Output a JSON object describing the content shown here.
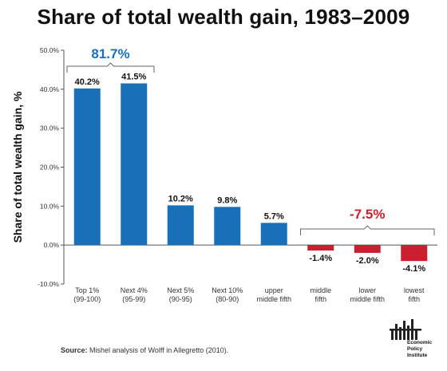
{
  "chart_data": {
    "type": "bar",
    "title": "Share of total wealth gain, 1983–2009",
    "ylabel": "Share of total wealth gain, %",
    "xlabel": "",
    "ylim": [
      -10,
      50
    ],
    "yticks": [
      50,
      40,
      30,
      20,
      10,
      0,
      -10
    ],
    "ytick_labels": [
      "50.0%",
      "40.0%",
      "30.0%",
      "20.0%",
      "10.0%",
      "0.0%",
      "-10.0%"
    ],
    "grid": false,
    "categories": [
      [
        "Top 1%",
        "(99-100)"
      ],
      [
        "Next 4%",
        "(95-99)"
      ],
      [
        "Next 5%",
        "(90-95)"
      ],
      [
        "Next 10%",
        "(80-90)"
      ],
      [
        "upper",
        "middle fifth"
      ],
      [
        "middle",
        "fifth"
      ],
      [
        "lower",
        "middle fifth"
      ],
      [
        "lowest",
        "fifth"
      ]
    ],
    "values": [
      40.2,
      41.5,
      10.2,
      9.8,
      5.7,
      -1.4,
      -2.0,
      -4.1
    ],
    "value_labels": [
      "40.2%",
      "41.5%",
      "10.2%",
      "9.8%",
      "5.7%",
      "-1.4%",
      "-2.0%",
      "-4.1%"
    ],
    "colors": {
      "positive": "#1a70b8",
      "negative": "#c8202f",
      "axis": "#555555"
    },
    "groups": [
      {
        "label": "81.7%",
        "from": 0,
        "to": 1,
        "color": "#1a70b8"
      },
      {
        "label": "-7.5%",
        "from": 5,
        "to": 7,
        "color": "#c8202f"
      }
    ]
  },
  "footer": {
    "source_label": "Source:",
    "source_text": " Mishel analysis of Wolff in Allegretto  (2010).",
    "logo_text": [
      "Economic",
      "Policy",
      "Institute"
    ]
  }
}
